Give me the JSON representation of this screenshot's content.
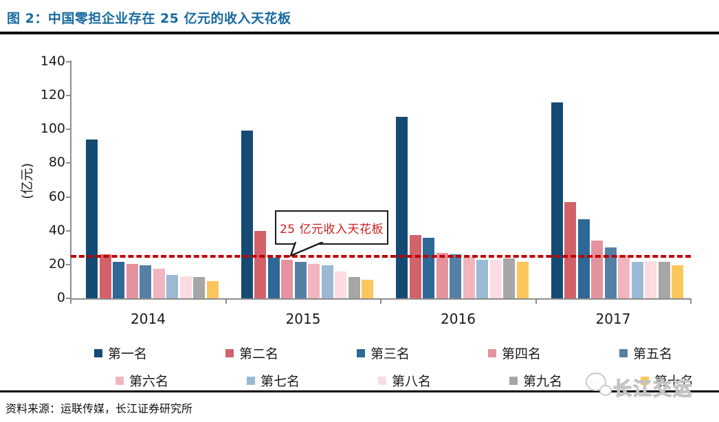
{
  "figure": {
    "title": "图 2：中国零担企业存在 25 亿元的收入天花板",
    "source_note": "资料来源：运联传媒，长江证券研究所",
    "watermark_text": "长江交运",
    "title_color": "#166a9f"
  },
  "chart_data": {
    "type": "bar",
    "title": "中国零担企业存在 25 亿元的收入天花板",
    "xlabel": "",
    "ylabel": "(亿元)",
    "ylim": [
      0,
      140
    ],
    "yticks": [
      0,
      20,
      40,
      60,
      80,
      100,
      120,
      140
    ],
    "grid": false,
    "legend_position": "bottom",
    "categories": [
      "2014",
      "2015",
      "2016",
      "2017"
    ],
    "series": [
      {
        "name": "第一名",
        "color": "#134b74",
        "values": [
          94,
          99.5,
          107.5,
          116
        ]
      },
      {
        "name": "第二名",
        "color": "#d2626a",
        "values": [
          26,
          40,
          37.5,
          57
        ]
      },
      {
        "name": "第三名",
        "color": "#2d6896",
        "values": [
          21.5,
          24,
          36,
          47
        ]
      },
      {
        "name": "第四名",
        "color": "#e4939e",
        "values": [
          20.5,
          23,
          27,
          34
        ]
      },
      {
        "name": "第五名",
        "color": "#5480a6",
        "values": [
          19.5,
          21.5,
          26,
          30
        ]
      },
      {
        "name": "第六名",
        "color": "#f2b5bf",
        "values": [
          17.5,
          20.5,
          24.5,
          25.5
        ]
      },
      {
        "name": "第七名",
        "color": "#9bb9d4",
        "values": [
          14,
          19.5,
          23,
          21.5
        ]
      },
      {
        "name": "第八名",
        "color": "#fadce2",
        "values": [
          13,
          16,
          23,
          22
        ]
      },
      {
        "name": "第九名",
        "color": "#a6a6a6",
        "values": [
          12.5,
          12.5,
          23.5,
          21.5
        ]
      },
      {
        "name": "第十名",
        "color": "#fbc75c",
        "values": [
          10,
          11,
          21.5,
          19.5
        ]
      }
    ],
    "ceiling_line": {
      "value": 25,
      "label": "25 亿元收入天花板",
      "color": "#c00000",
      "style": "dashed"
    }
  }
}
